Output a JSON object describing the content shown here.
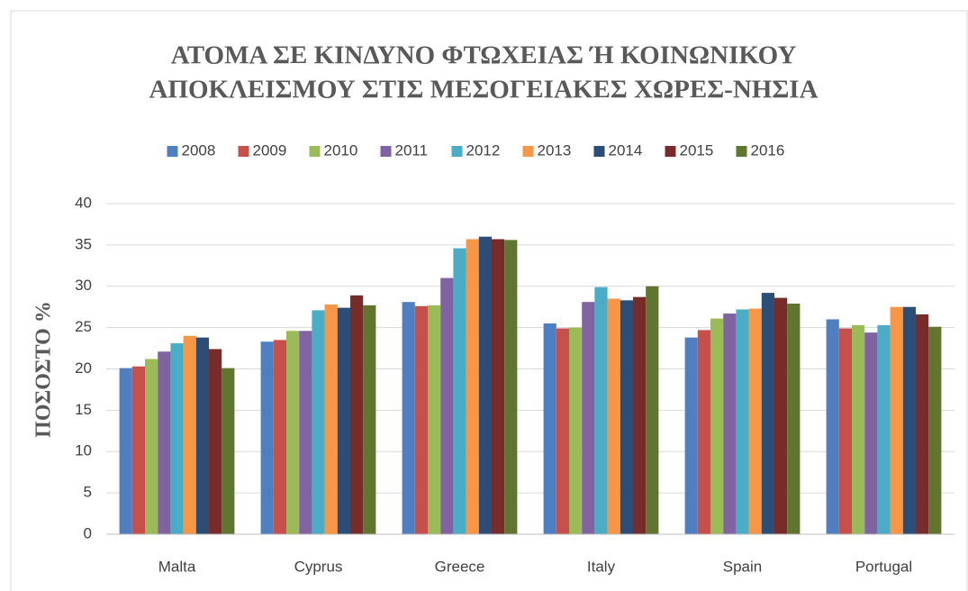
{
  "chart_data": {
    "type": "bar",
    "title": [
      "ΑΤΟΜΑ ΣΕ ΚΙΝΔΥΝΟ ΦΤΩΧΕΙΑΣ Ή ΚΟΙΝΩΝΙΚΟΥ",
      "ΑΠΟΚΛΕΙΣΜΟΥ ΣΤΙΣ ΜΕΣΟΓΕΙΑΚΕΣ ΧΩΡΕΣ-ΝΗΣΙΑ"
    ],
    "y_label": "ΠΟΣΟΣΤΟ %",
    "categories": [
      "Malta",
      "Cyprus",
      "Greece",
      "Italy",
      "Spain",
      "Portugal"
    ],
    "series": [
      {
        "name": "2008",
        "color": "#4f7fc0",
        "values": [
          20.1,
          23.3,
          28.1,
          25.5,
          23.8,
          26.0
        ]
      },
      {
        "name": "2009",
        "color": "#c5504c",
        "values": [
          20.3,
          23.5,
          27.6,
          24.9,
          24.7,
          24.9
        ]
      },
      {
        "name": "2010",
        "color": "#9bbb59",
        "values": [
          21.2,
          24.6,
          27.7,
          25.0,
          26.1,
          25.3
        ]
      },
      {
        "name": "2011",
        "color": "#8064a2",
        "values": [
          22.1,
          24.6,
          31.0,
          28.1,
          26.7,
          24.4
        ]
      },
      {
        "name": "2012",
        "color": "#4bacc6",
        "values": [
          23.1,
          27.1,
          34.6,
          29.9,
          27.2,
          25.3
        ]
      },
      {
        "name": "2013",
        "color": "#f79646",
        "values": [
          24.0,
          27.8,
          35.7,
          28.5,
          27.3,
          27.5
        ]
      },
      {
        "name": "2014",
        "color": "#2c4d75",
        "values": [
          23.8,
          27.4,
          36.0,
          28.3,
          29.2,
          27.5
        ]
      },
      {
        "name": "2015",
        "color": "#772c2a",
        "values": [
          22.4,
          28.9,
          35.7,
          28.7,
          28.6,
          26.6
        ]
      },
      {
        "name": "2016",
        "color": "#5f7530",
        "values": [
          20.1,
          27.7,
          35.6,
          30.0,
          27.9,
          25.1
        ]
      }
    ],
    "ylim": [
      0,
      40
    ],
    "yticks": [
      0,
      5,
      10,
      15,
      20,
      25,
      30,
      35,
      40
    ],
    "grid": true,
    "legend": "top"
  }
}
